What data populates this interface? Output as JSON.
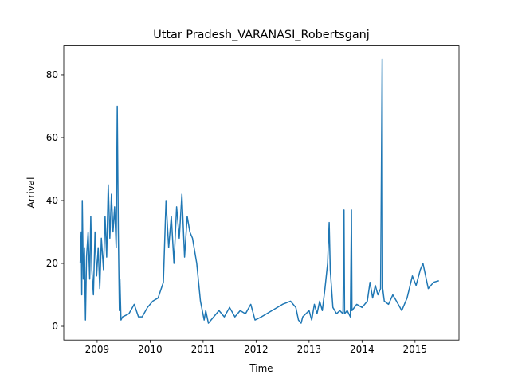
{
  "chart_data": {
    "type": "line",
    "title": "Uttar Pradesh_VARANASI_Robertsganj",
    "x_label": "Time",
    "y_label": "Arrival",
    "x": [
      2008.68,
      2008.7,
      2008.71,
      2008.72,
      2008.74,
      2008.76,
      2008.78,
      2008.8,
      2008.83,
      2008.86,
      2008.88,
      2008.9,
      2008.93,
      2008.96,
      2008.99,
      2009.02,
      2009.05,
      2009.08,
      2009.12,
      2009.15,
      2009.18,
      2009.21,
      2009.24,
      2009.27,
      2009.3,
      2009.33,
      2009.36,
      2009.38,
      2009.4,
      2009.42,
      2009.43,
      2009.45,
      2009.48,
      2009.6,
      2009.7,
      2009.78,
      2009.85,
      2009.95,
      2010.05,
      2010.15,
      2010.25,
      2010.3,
      2010.35,
      2010.4,
      2010.45,
      2010.5,
      2010.55,
      2010.6,
      2010.65,
      2010.7,
      2010.75,
      2010.8,
      2010.88,
      2010.95,
      2011.02,
      2011.05,
      2011.1,
      2011.2,
      2011.3,
      2011.4,
      2011.5,
      2011.6,
      2011.7,
      2011.8,
      2011.9,
      2011.98,
      2012.1,
      2012.3,
      2012.5,
      2012.65,
      2012.75,
      2012.8,
      2012.85,
      2012.88,
      2013.0,
      2013.05,
      2013.1,
      2013.15,
      2013.2,
      2013.25,
      2013.3,
      2013.35,
      2013.38,
      2013.4,
      2013.45,
      2013.52,
      2013.58,
      2013.64,
      2013.66,
      2013.67,
      2013.72,
      2013.78,
      2013.8,
      2013.81,
      2013.9,
      2014.0,
      2014.1,
      2014.15,
      2014.2,
      2014.25,
      2014.3,
      2014.35,
      2014.38,
      2014.39,
      2014.42,
      2014.5,
      2014.58,
      2014.65,
      2014.75,
      2014.85,
      2014.95,
      2015.02,
      2015.1,
      2015.15,
      2015.25,
      2015.35,
      2015.45
    ],
    "series": [
      {
        "color": "#1f77b4",
        "values": [
          20,
          30,
          10,
          40,
          15,
          25,
          2,
          22,
          30,
          15,
          35,
          18,
          10,
          30,
          16,
          25,
          12,
          28,
          18,
          35,
          22,
          45,
          28,
          42,
          30,
          38,
          25,
          70,
          30,
          5,
          15,
          2,
          3,
          4,
          7,
          3,
          3,
          6,
          8,
          9,
          14,
          40,
          25,
          35,
          20,
          38,
          28,
          42,
          22,
          35,
          30,
          28,
          20,
          8,
          2,
          5,
          1,
          3,
          5,
          3,
          6,
          3,
          5,
          4,
          7,
          2,
          3,
          5,
          7,
          8,
          6,
          2,
          1,
          3,
          5,
          2,
          7,
          4,
          8,
          5,
          12,
          20,
          33,
          18,
          6,
          4,
          5,
          4,
          37,
          4,
          5,
          3,
          37,
          5,
          7,
          6,
          8,
          14,
          9,
          13,
          10,
          12,
          85,
          12,
          8,
          7,
          10,
          8,
          5,
          9,
          16,
          13,
          18,
          20,
          12,
          14,
          14.5
        ]
      }
    ],
    "xlim": [
      2008.37,
      2015.83
    ],
    "ylim": [
      -4.35,
      89.2
    ],
    "xticks": [
      2009,
      2010,
      2011,
      2012,
      2013,
      2014,
      2015
    ],
    "yticks": [
      0,
      20,
      40,
      60,
      80
    ]
  }
}
